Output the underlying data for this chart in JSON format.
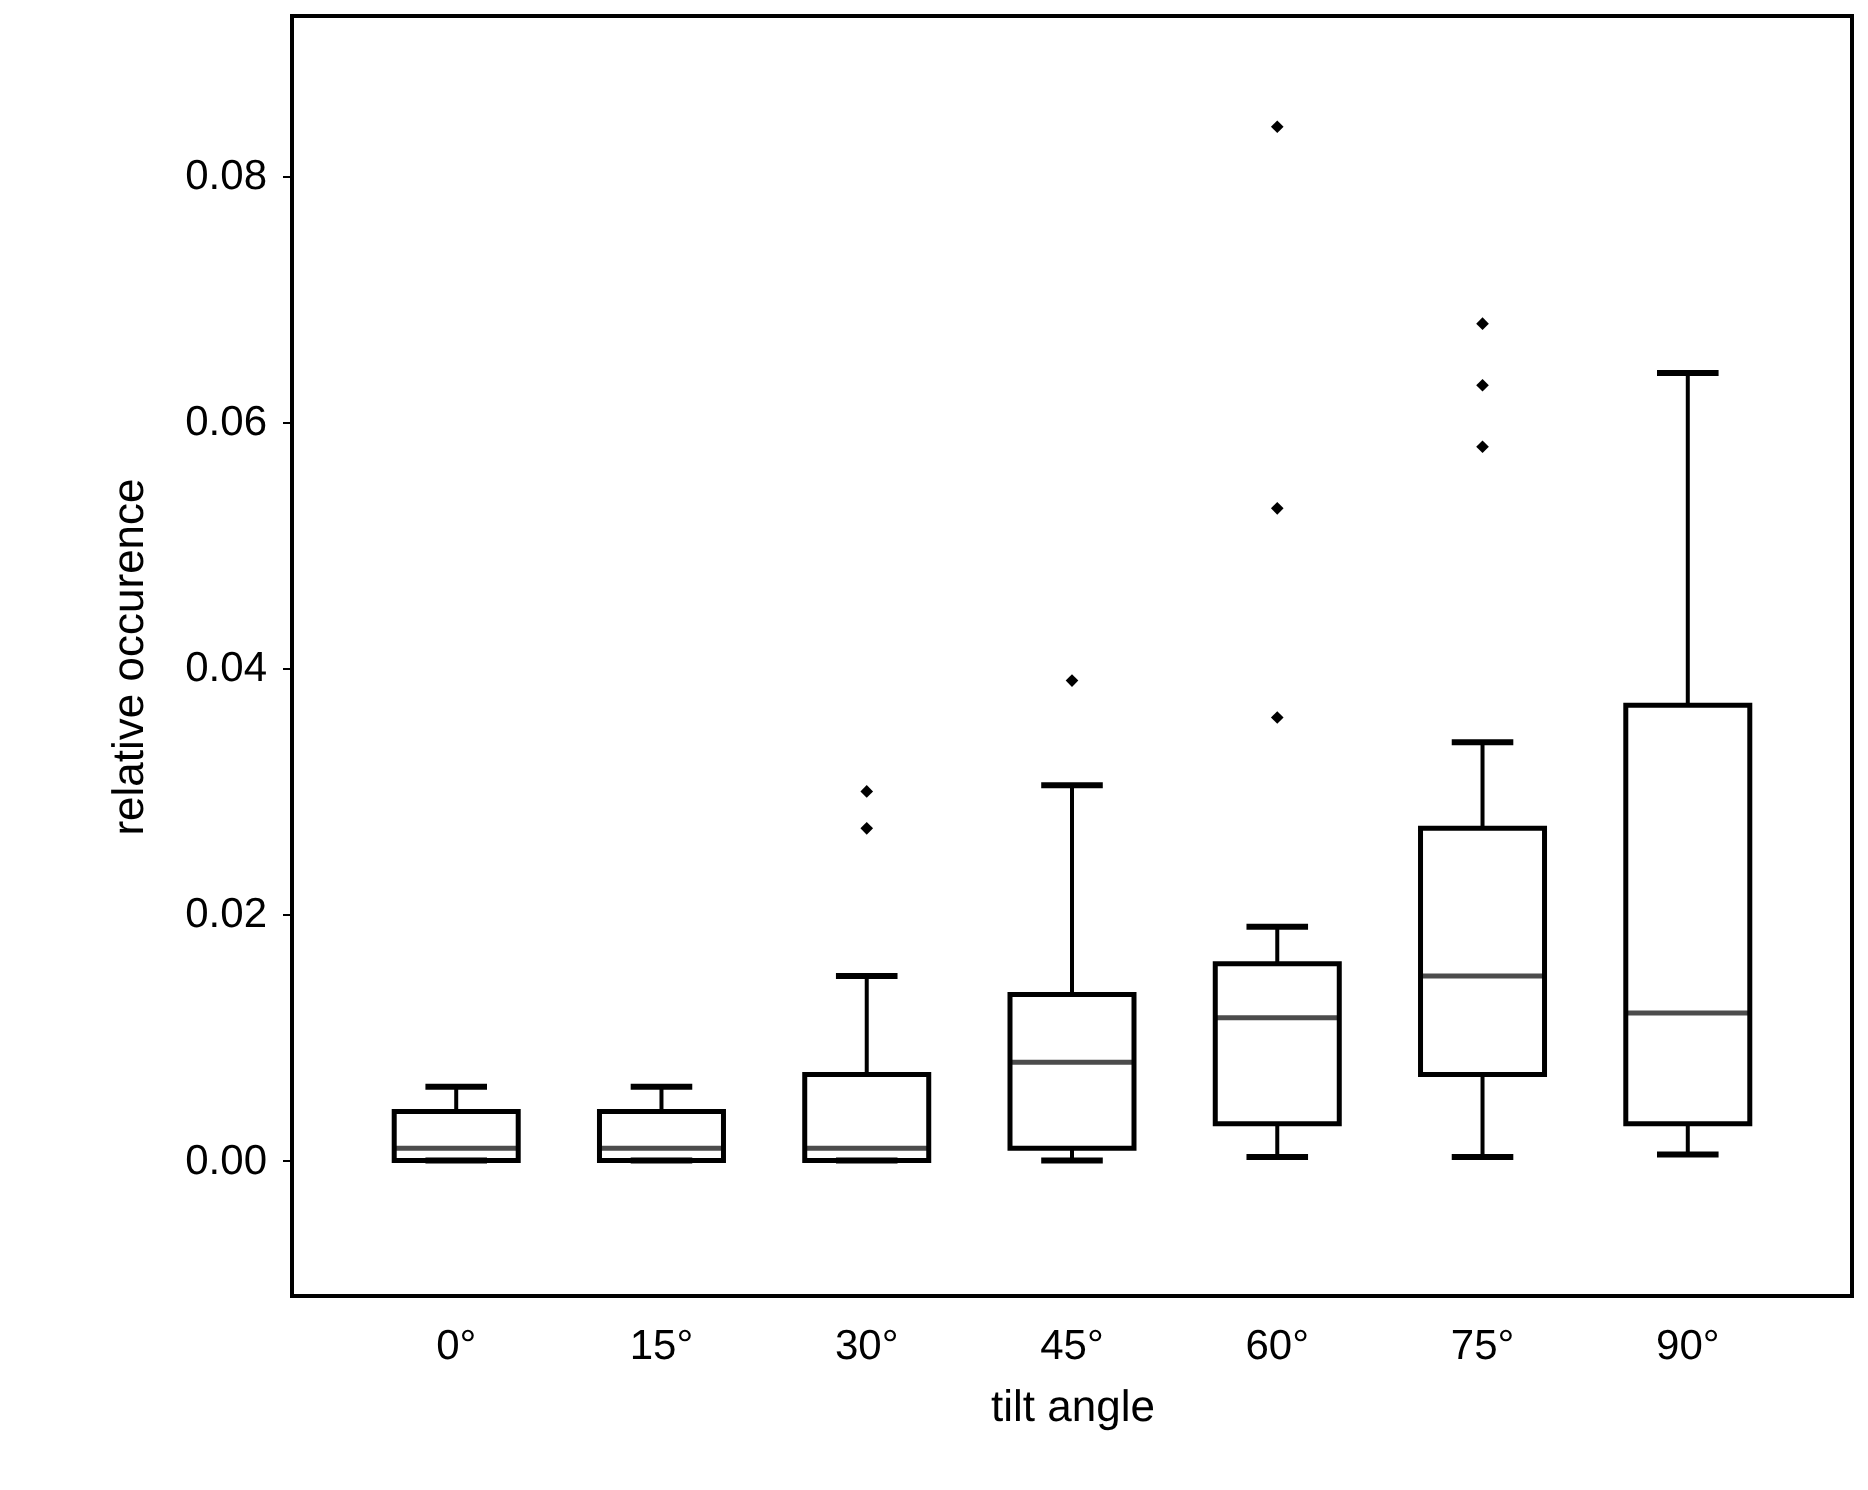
{
  "chart_data": {
    "type": "box",
    "xlabel": "tilt angle",
    "ylabel": "relative occurence",
    "categories": [
      "0°",
      "15°",
      "30°",
      "45°",
      "60°",
      "75°",
      "90°"
    ],
    "boxes": [
      {
        "low": 0.0,
        "q1": 0.0,
        "median": 0.001,
        "q3": 0.004,
        "high": 0.006
      },
      {
        "low": 0.0,
        "q1": 0.0,
        "median": 0.001,
        "q3": 0.004,
        "high": 0.006
      },
      {
        "low": 0.0,
        "q1": 0.0,
        "median": 0.001,
        "q3": 0.007,
        "high": 0.015,
        "outliers": [
          0.027,
          0.03
        ]
      },
      {
        "low": 0.0,
        "q1": 0.001,
        "median": 0.008,
        "q3": 0.0135,
        "high": 0.0305,
        "outliers": [
          0.039
        ]
      },
      {
        "low": 0.0003,
        "q1": 0.003,
        "median": 0.0116,
        "q3": 0.016,
        "high": 0.019,
        "outliers": [
          0.036,
          0.053,
          0.084
        ]
      },
      {
        "low": 0.0003,
        "q1": 0.007,
        "median": 0.015,
        "q3": 0.027,
        "high": 0.034,
        "outliers": [
          0.058,
          0.063,
          0.068
        ]
      },
      {
        "low": 0.0005,
        "q1": 0.003,
        "median": 0.012,
        "q3": 0.037,
        "high": 0.064
      }
    ],
    "ylim": [
      -0.011,
      0.093
    ],
    "yticks": [
      {
        "value": 0.0,
        "label": "0.00"
      },
      {
        "value": 0.02,
        "label": "0.02"
      },
      {
        "value": 0.04,
        "label": "0.04"
      },
      {
        "value": 0.06,
        "label": "0.06"
      },
      {
        "value": 0.08,
        "label": "0.08"
      }
    ]
  }
}
